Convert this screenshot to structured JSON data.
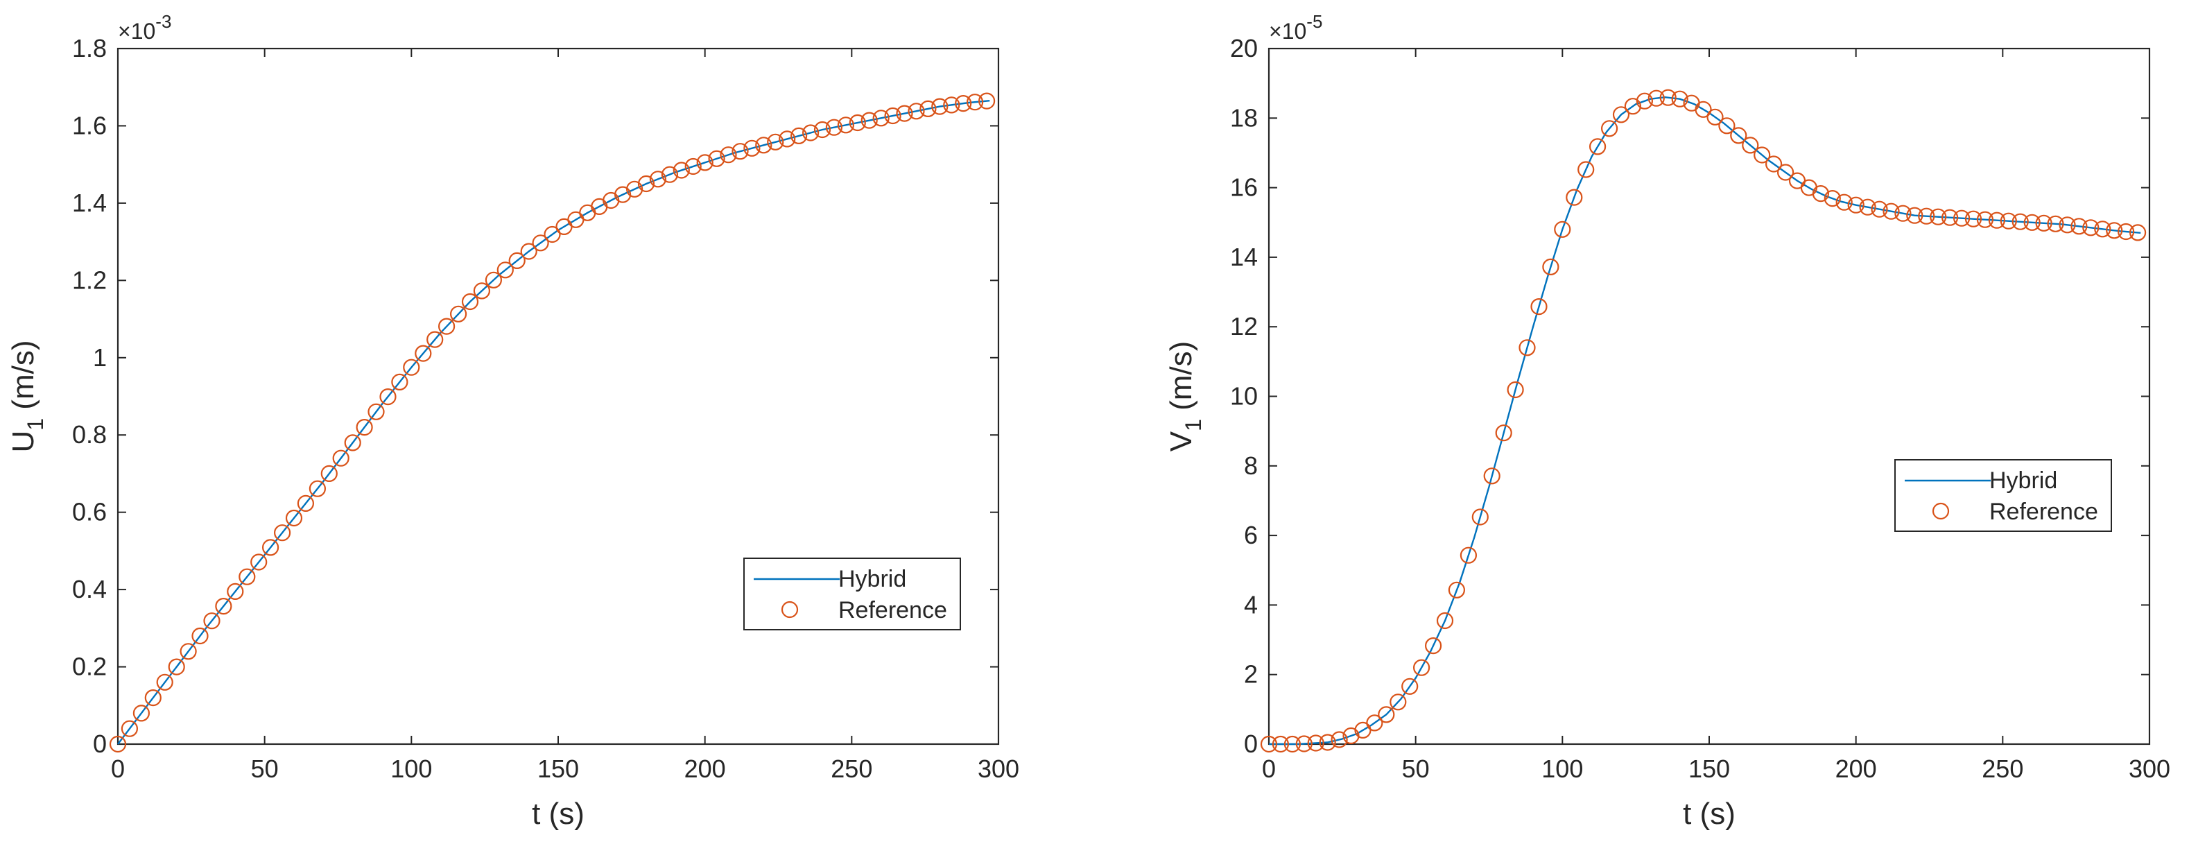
{
  "chart_data": [
    {
      "type": "line",
      "panel": "left",
      "xlabel": "t (s)",
      "ylabel_main": "U",
      "ylabel_sub": "1",
      "ylabel_unit": " (m/s)",
      "exponent_base": "×10",
      "exponent_power": "-3",
      "xlim": [
        0,
        300
      ],
      "ylim": [
        0,
        1.8
      ],
      "xticks": [
        0,
        50,
        100,
        150,
        200,
        250,
        300
      ],
      "xtick_labels": [
        "0",
        "50",
        "100",
        "150",
        "200",
        "250",
        "300"
      ],
      "yticks": [
        0,
        0.2,
        0.4,
        0.6,
        0.8,
        1.0,
        1.2,
        1.4,
        1.6,
        1.8
      ],
      "ytick_labels": [
        "0",
        "0.2",
        "0.4",
        "0.6",
        "0.8",
        "1",
        "1.2",
        "1.4",
        "1.6",
        "1.8"
      ],
      "legend": {
        "placement": "lower-right",
        "entries": [
          "Hybrid",
          "Reference"
        ]
      },
      "series": [
        {
          "name": "Hybrid",
          "style": "line",
          "color": "#0072BD",
          "x": [
            0,
            10,
            20,
            30,
            40,
            50,
            60,
            70,
            80,
            90,
            100,
            110,
            120,
            130,
            140,
            150,
            160,
            170,
            180,
            190,
            200,
            210,
            220,
            230,
            240,
            250,
            260,
            270,
            280,
            290,
            297
          ],
          "y": [
            0,
            0.1,
            0.2,
            0.3,
            0.395,
            0.49,
            0.585,
            0.68,
            0.78,
            0.88,
            0.975,
            1.065,
            1.145,
            1.215,
            1.275,
            1.33,
            1.375,
            1.415,
            1.45,
            1.48,
            1.505,
            1.53,
            1.55,
            1.57,
            1.59,
            1.605,
            1.62,
            1.635,
            1.65,
            1.66,
            1.665
          ]
        },
        {
          "name": "Reference",
          "style": "markers",
          "color": "#D95319",
          "marker": "circle"
        }
      ]
    },
    {
      "type": "line",
      "panel": "right",
      "xlabel": "t (s)",
      "ylabel_main": "V",
      "ylabel_sub": "1",
      "ylabel_unit": " (m/s)",
      "exponent_base": "×10",
      "exponent_power": "-5",
      "xlim": [
        0,
        300
      ],
      "ylim": [
        0,
        20
      ],
      "xticks": [
        0,
        50,
        100,
        150,
        200,
        250,
        300
      ],
      "xtick_labels": [
        "0",
        "50",
        "100",
        "150",
        "200",
        "250",
        "300"
      ],
      "yticks": [
        0,
        2,
        4,
        6,
        8,
        10,
        12,
        14,
        16,
        18,
        20
      ],
      "ytick_labels": [
        "0",
        "2",
        "4",
        "6",
        "8",
        "10",
        "12",
        "14",
        "16",
        "18",
        "20"
      ],
      "legend": {
        "placement": "right",
        "entries": [
          "Hybrid",
          "Reference"
        ]
      },
      "series": [
        {
          "name": "Hybrid",
          "style": "line",
          "color": "#0072BD",
          "x": [
            0,
            10,
            20,
            25,
            30,
            35,
            40,
            45,
            50,
            55,
            60,
            65,
            70,
            75,
            80,
            85,
            90,
            95,
            100,
            105,
            110,
            115,
            120,
            125,
            130,
            135,
            140,
            145,
            150,
            155,
            160,
            165,
            170,
            175,
            180,
            185,
            190,
            195,
            200,
            210,
            220,
            230,
            240,
            250,
            260,
            270,
            280,
            290,
            297
          ],
          "y": [
            0,
            0,
            0.05,
            0.15,
            0.3,
            0.55,
            0.85,
            1.3,
            1.9,
            2.65,
            3.55,
            4.65,
            5.95,
            7.4,
            8.95,
            10.5,
            12.0,
            13.45,
            14.8,
            15.95,
            16.9,
            17.6,
            18.1,
            18.4,
            18.55,
            18.6,
            18.55,
            18.4,
            18.15,
            17.85,
            17.5,
            17.15,
            16.8,
            16.5,
            16.2,
            15.95,
            15.75,
            15.6,
            15.5,
            15.35,
            15.2,
            15.15,
            15.1,
            15.05,
            15.0,
            14.95,
            14.85,
            14.75,
            14.7
          ]
        },
        {
          "name": "Reference",
          "style": "markers",
          "color": "#D95319",
          "marker": "circle"
        }
      ]
    }
  ]
}
